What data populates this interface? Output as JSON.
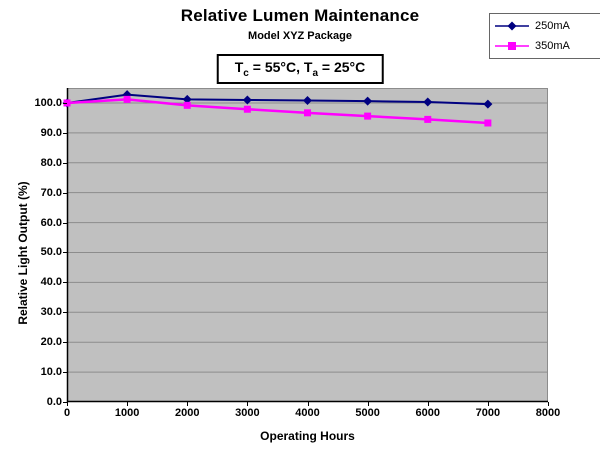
{
  "header": {
    "title": "Relative Lumen Maintenance",
    "subtitle": "Model XYZ Package"
  },
  "annotation": {
    "t1": "T",
    "sub1": "c",
    "seg1": " = 55°C, ",
    "t2": "T",
    "sub2": "a",
    "seg2": " = 25°C"
  },
  "chart_data": {
    "type": "line",
    "title": "Relative Lumen Maintenance",
    "subtitle": "Model XYZ Package",
    "xlabel": "Operating Hours",
    "ylabel": "Relative Light Output (%)",
    "x": [
      0,
      1000,
      2000,
      3000,
      4000,
      5000,
      6000,
      7000
    ],
    "series": [
      {
        "name": "250mA",
        "color": "#000080",
        "marker": "diamond",
        "line_width": 2,
        "values": [
          100,
          102.8,
          101.2,
          101.0,
          100.8,
          100.6,
          100.3,
          99.6
        ]
      },
      {
        "name": "350mA",
        "color": "#FF00FF",
        "marker": "square",
        "line_width": 2.5,
        "values": [
          100,
          101.2,
          99.2,
          97.9,
          96.7,
          95.6,
          94.5,
          93.3
        ]
      }
    ],
    "xlim": [
      0,
      8000
    ],
    "ylim": [
      0,
      105
    ],
    "x_ticks": [
      0,
      1000,
      2000,
      3000,
      4000,
      5000,
      6000,
      7000,
      8000
    ],
    "y_ticks": [
      0,
      10,
      20,
      30,
      40,
      50,
      60,
      70,
      80,
      90,
      100
    ],
    "y_tick_decimals": 1,
    "grid": true,
    "legend_position": "top-right",
    "colors": {
      "plot_bg": "#C0C0C0",
      "grid": "#8C8C8C",
      "axis": "#000000",
      "plot_border": "#8C8C8C"
    }
  }
}
